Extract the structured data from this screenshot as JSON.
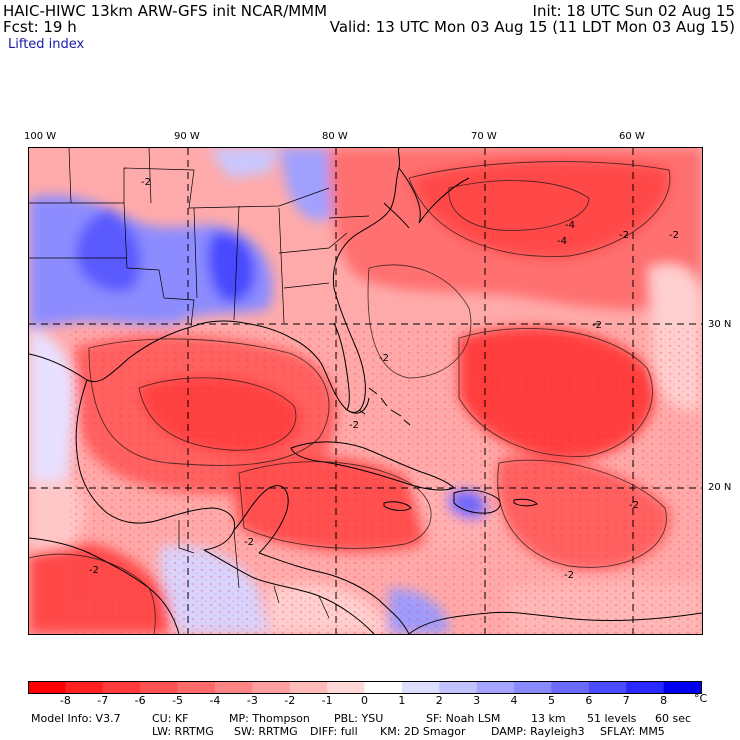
{
  "header": {
    "line1_left": "HAIC-HIWC 13km ARW-GFS init   NCAR/MMM",
    "line1_right": "Init: 18 UTC Sun 02 Aug 15",
    "line2_left": "Fcst:   19 h",
    "line2_right": "Valid: 13 UTC Mon 03 Aug 15 (11 LDT Mon 03 Aug 15)",
    "field": "Lifted index"
  },
  "map": {
    "lon_labels": [
      "100 W",
      "90 W",
      "80 W",
      "70 W",
      "60 W"
    ],
    "lat_labels": [
      "30 N",
      "20 N"
    ],
    "contour_labels": [
      "-2",
      "-4",
      "-2",
      "-2",
      "-4",
      "-2",
      "-2",
      "-2",
      "-2",
      "-2",
      "-2",
      "-2"
    ],
    "colors": {
      "negative_strong": "#ff2020",
      "negative_mid": "#ff7f7f",
      "neutral": "#ffffff",
      "positive_mid": "#9a9aff",
      "positive_strong": "#1010ee"
    }
  },
  "colorbar": {
    "unit": "°C",
    "ticks": [
      "-8",
      "-7",
      "-6",
      "-5",
      "-4",
      "-3",
      "-2",
      "-1",
      "0",
      "1",
      "2",
      "3",
      "4",
      "5",
      "6",
      "7",
      "8"
    ],
    "colors": [
      "#ff0000",
      "#ff2020",
      "#ff3a3a",
      "#ff5252",
      "#ff6a6a",
      "#ff8484",
      "#ff9e9e",
      "#ffbaba",
      "#ffd8d8",
      "#ffffff",
      "#dedeff",
      "#c2c2ff",
      "#a6a6ff",
      "#8a8aff",
      "#6a6aff",
      "#4c4cff",
      "#2a2aff",
      "#0000ee"
    ]
  },
  "footer": {
    "line1": [
      "Model Info: V3.7",
      "CU: KF",
      "MP: Thompson",
      "PBL: YSU",
      "SF: Noah LSM",
      "13 km",
      "51 levels",
      "60 sec"
    ],
    "line2": [
      "LW: RRTMG",
      "SW: RRTMG",
      "DIFF: full",
      "KM: 2D Smagor",
      "DAMP: Rayleigh3",
      "SFLAY: MM5"
    ]
  }
}
